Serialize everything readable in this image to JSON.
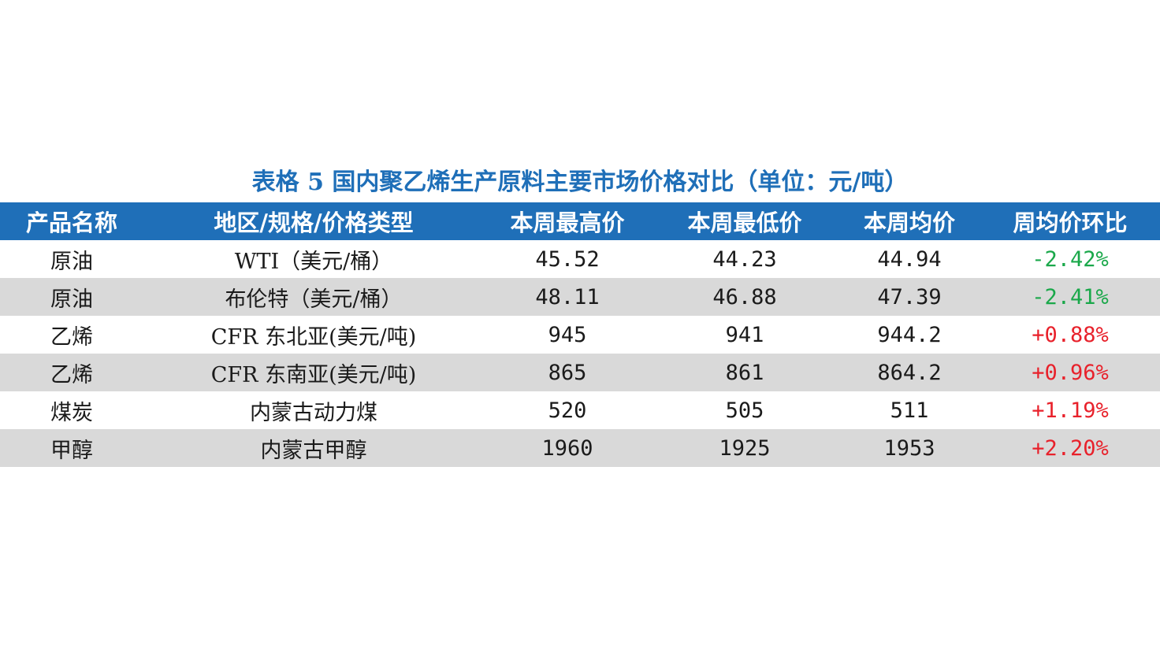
{
  "title": "表格 5   国内聚乙烯生产原料主要市场价格对比（单位：元/吨）",
  "colors": {
    "header_bg": "#1f6fb8",
    "title": "#1f6fb8",
    "row_alt": "#d9d9d9",
    "negative": "#1aa84a",
    "positive": "#e8212b"
  },
  "headers": [
    "产品名称",
    "地区/规格/价格类型",
    "本周最高价",
    "本周最低价",
    "本周均价",
    "周均价环比"
  ],
  "rows": [
    {
      "product": "原油",
      "spec": "WTI（美元/桶）",
      "high": "45.52",
      "low": "44.23",
      "avg": "44.94",
      "change": "-2.42%",
      "trend": "down"
    },
    {
      "product": "原油",
      "spec": "布伦特（美元/桶）",
      "high": "48.11",
      "low": "46.88",
      "avg": "47.39",
      "change": "-2.41%",
      "trend": "down"
    },
    {
      "product": "乙烯",
      "spec": "CFR 东北亚(美元/吨)",
      "high": "945",
      "low": "941",
      "avg": "944.2",
      "change": "+0.88%",
      "trend": "up"
    },
    {
      "product": "乙烯",
      "spec": "CFR 东南亚(美元/吨)",
      "high": "865",
      "low": "861",
      "avg": "864.2",
      "change": "+0.96%",
      "trend": "up"
    },
    {
      "product": "煤炭",
      "spec": "内蒙古动力煤",
      "high": "520",
      "low": "505",
      "avg": "511",
      "change": "+1.19%",
      "trend": "up"
    },
    {
      "product": "甲醇",
      "spec": "内蒙古甲醇",
      "high": "1960",
      "low": "1925",
      "avg": "1953",
      "change": "+2.20%",
      "trend": "up"
    }
  ]
}
